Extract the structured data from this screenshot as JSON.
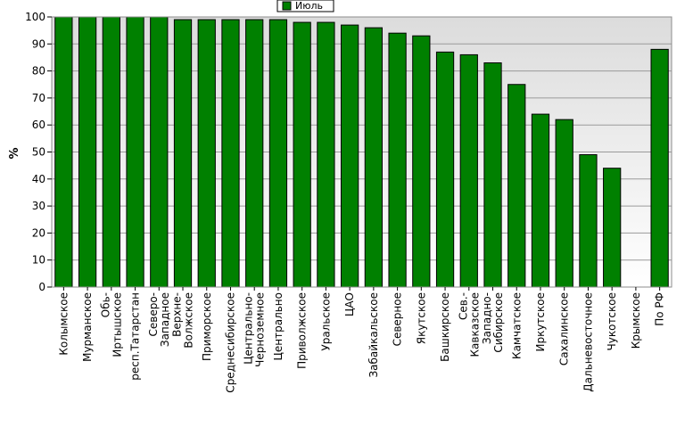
{
  "chart_data": {
    "type": "bar",
    "title": "",
    "xlabel": "",
    "ylabel": "%",
    "ylim": [
      0,
      100
    ],
    "yticks": [
      0,
      10,
      20,
      30,
      40,
      50,
      60,
      70,
      80,
      90,
      100
    ],
    "grid": true,
    "legend_position": "top-center",
    "colors": {
      "bar": "#008000",
      "bar_edge": "#000000",
      "grid": "#9a9a9a",
      "plot_bg_top": "#dcdcdc",
      "plot_bg_bottom": "#ffffff"
    },
    "categories": [
      [
        "Колымское"
      ],
      [
        "Мурманское"
      ],
      [
        "Обь-",
        "Иртышское"
      ],
      [
        "респ.Татарстан"
      ],
      [
        "Северо-",
        "Западное"
      ],
      [
        "Верхне-",
        "Волжское"
      ],
      [
        "Приморское"
      ],
      [
        "Среднесибирское"
      ],
      [
        "Центрально-",
        "Черноземное"
      ],
      [
        "Центрально"
      ],
      [
        "Приволжское"
      ],
      [
        "Уральское"
      ],
      [
        "ЦАО"
      ],
      [
        "Забайкальское"
      ],
      [
        "Северное"
      ],
      [
        "Якутское"
      ],
      [
        "Башкирское"
      ],
      [
        "Сев.-",
        "Кавказское"
      ],
      [
        "Западно-",
        "Сибирское"
      ],
      [
        "Камчатское"
      ],
      [
        "Иркутское"
      ],
      [
        "Сахалинское"
      ],
      [
        "Дальневосточное"
      ],
      [
        "Чукотское"
      ],
      [
        "Крымское"
      ],
      [
        "По РФ"
      ]
    ],
    "series": [
      {
        "name": "Июль",
        "values": [
          100,
          100,
          100,
          100,
          100,
          99,
          99,
          99,
          99,
          99,
          98,
          98,
          97,
          96,
          94,
          93,
          87,
          86,
          83,
          75,
          64,
          62,
          49,
          44,
          0,
          88
        ]
      }
    ]
  }
}
